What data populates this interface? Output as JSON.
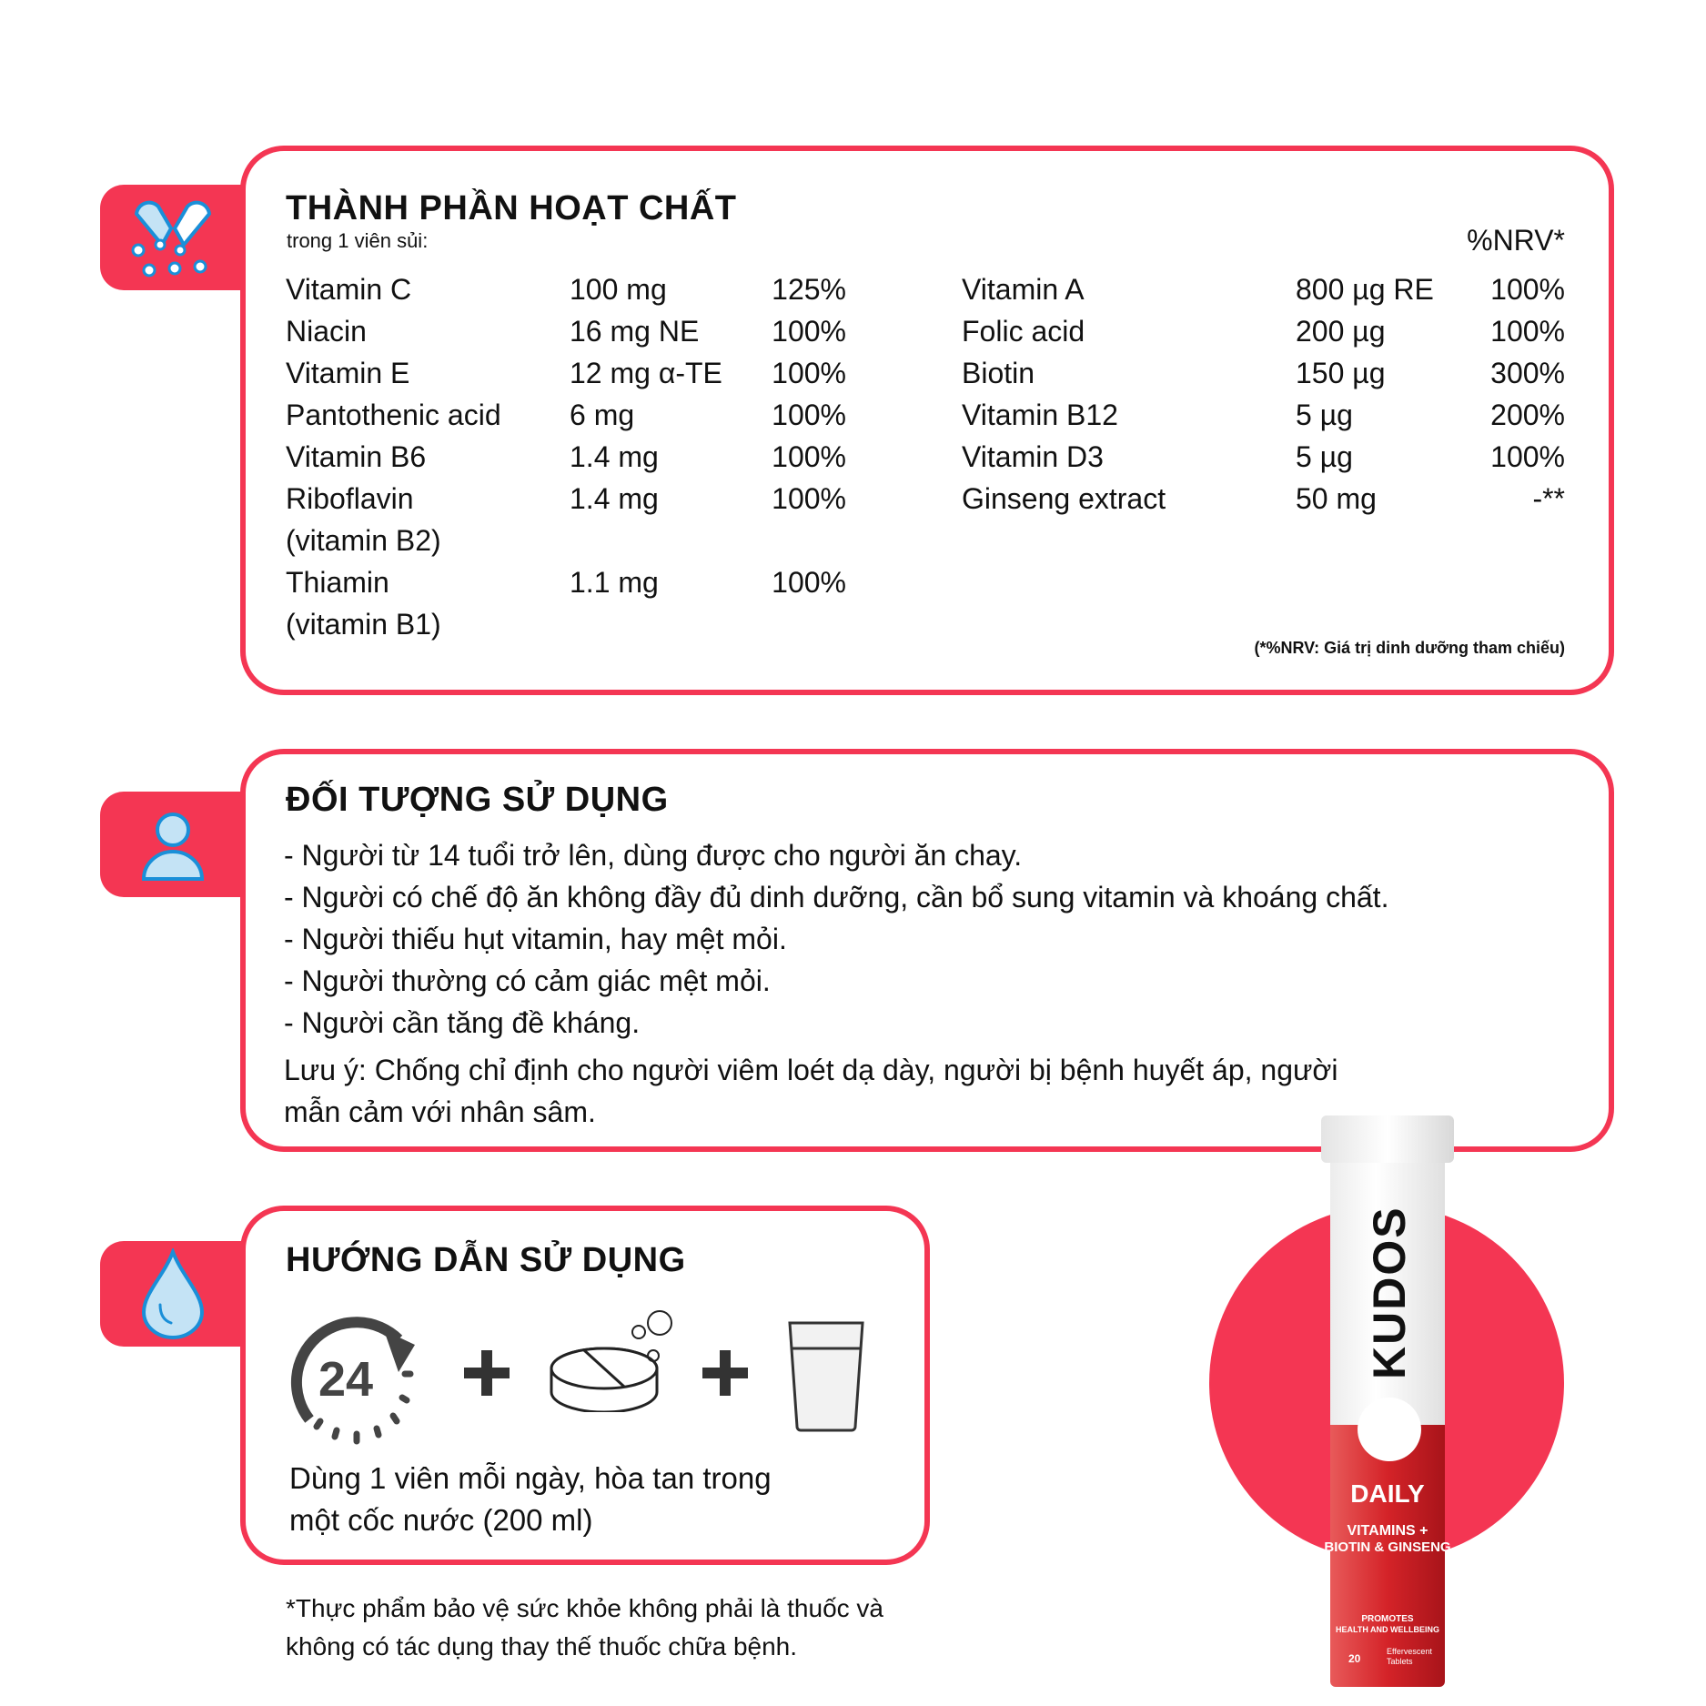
{
  "ingredients": {
    "title": "THÀNH PHẦN HOẠT CHẤT",
    "subtitle": "trong 1 viên sủi:",
    "nrv_header": "%NRV*",
    "left": [
      {
        "name": "Vitamin C",
        "amount": "100 mg",
        "nrv": "125%"
      },
      {
        "name": "Niacin",
        "amount": "16 mg NE",
        "nrv": "100%"
      },
      {
        "name": "Vitamin E",
        "amount": "12 mg α-TE",
        "nrv": "100%"
      },
      {
        "name": "Pantothenic acid",
        "amount": "6 mg",
        "nrv": "100%"
      },
      {
        "name": "Vitamin B6",
        "amount": "1.4 mg",
        "nrv": "100%"
      },
      {
        "name": "Riboflavin",
        "name2": "(vitamin B2)",
        "amount": "1.4 mg",
        "nrv": "100%"
      },
      {
        "name": "Thiamin",
        "name2": "(vitamin B1)",
        "amount": "1.1 mg",
        "nrv": "100%"
      }
    ],
    "right": [
      {
        "name": "Vitamin A",
        "amount": "800 µg RE",
        "nrv": "100%"
      },
      {
        "name": "Folic acid",
        "amount": "200 µg",
        "nrv": "100%"
      },
      {
        "name": "Biotin",
        "amount": "150 µg",
        "nrv": "300%"
      },
      {
        "name": "Vitamin B12",
        "amount": "5 µg",
        "nrv": "200%"
      },
      {
        "name": "Vitamin D3",
        "amount": "5 µg",
        "nrv": "100%"
      },
      {
        "name": "Ginseng extract",
        "amount": "50 mg",
        "nrv": "-**"
      }
    ],
    "footnote": "(*%NRV: Giá trị dinh dưỡng tham chiếu)"
  },
  "target": {
    "title": "ĐỐI TƯỢNG SỬ DỤNG",
    "lines": [
      "- Người từ 14 tuổi trở lên, dùng được cho người ăn chay.",
      "- Người có chế độ ăn không đầy đủ dinh dưỡng, cần bổ sung vitamin và khoáng chất.",
      "- Người thiếu hụt vitamin, hay mệt mỏi.",
      "- Người thường có cảm giác mệt mỏi.",
      "- Người cần tăng đề kháng."
    ],
    "note_1": "Lưu ý: Chống chỉ định cho người viêm loét dạ dày, người bị bệnh huyết áp, người",
    "note_2": "mẫn cảm với nhân sâm."
  },
  "usage": {
    "title": "HƯỚNG DẪN SỬ DỤNG",
    "clock_label": "24",
    "text_1": "Dùng 1 viên mỗi ngày, hòa tan trong",
    "text_2": "một cốc nước (200 ml)"
  },
  "disclaimer": {
    "line_1": "*Thực phẩm bảo vệ sức khỏe không phải là thuốc và",
    "line_2": "không có tác dụng thay thế thuốc chữa bệnh."
  },
  "product": {
    "brand": "KUDOS",
    "name": "DAILY",
    "sub_1": "VITAMINS +",
    "sub_2": "BIOTIN & GINSENG",
    "promo_1": "PROMOTES",
    "promo_2": "HEALTH AND WELLBEING",
    "count": "20",
    "count_label_1": "Effervescent",
    "count_label_2": "Tablets"
  },
  "colors": {
    "accent": "#f43653",
    "icon_blue": "#1a8fd8",
    "icon_light": "#c4e3f5",
    "dark_icon": "#444444"
  }
}
